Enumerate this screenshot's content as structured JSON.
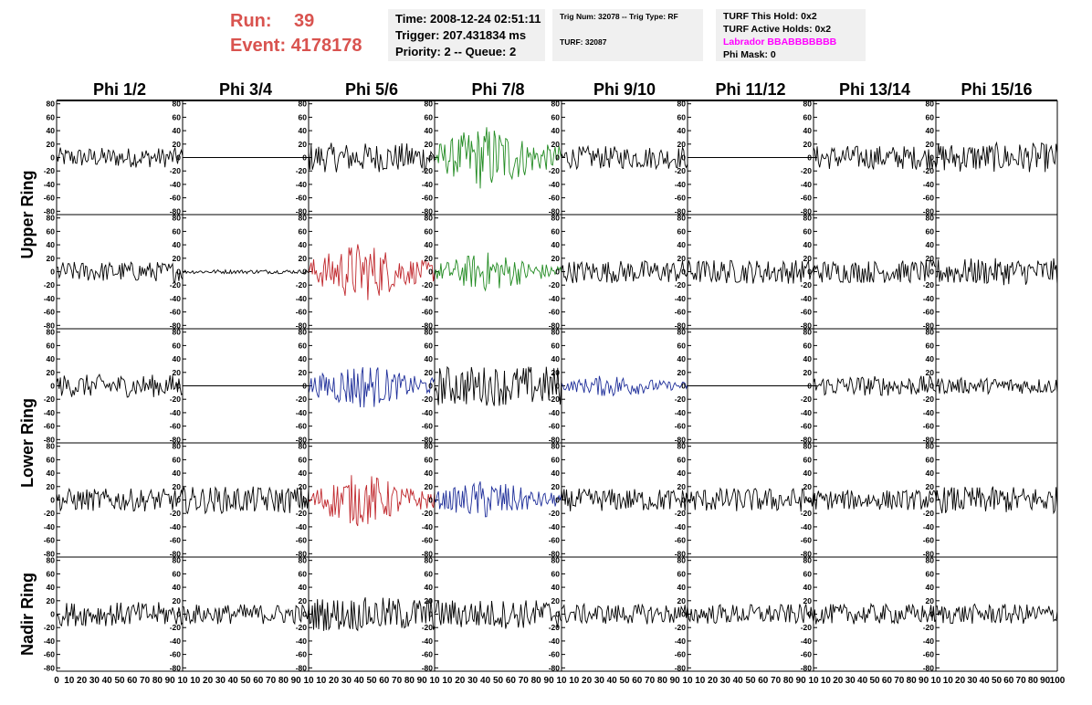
{
  "run_info": {
    "run_label": "Run:",
    "run_value": "39",
    "event_label": "Event:",
    "event_value": "4178178"
  },
  "event_box": {
    "time": "Time: 2008-12-24 02:51:11",
    "trigger": "Trigger: 207.431834 ms",
    "priority": "Priority: 2 -- Queue: 2"
  },
  "trig_box": {
    "trig": "Trig Num: 32078 -- Trig Type: RF",
    "turf": "TURF: 32087"
  },
  "turf_box": {
    "this_hold": "TURF This Hold: 0x2",
    "active_holds": "TURF Active Holds: 0x2",
    "labrador": "Labrador BBABBBBBBB",
    "phi_mask": "Phi Mask: 0"
  },
  "colors": {
    "text_red": "#d9534f",
    "labrador_magenta": "#ff00ff",
    "trace_black": "#000000",
    "trace_green": "#228b22",
    "trace_red": "#c0282d",
    "trace_blue": "#1f2f9a",
    "box_bg": "#f0f0f0"
  },
  "chart_data": {
    "type": "line",
    "phi_headers": [
      "Phi 1/2",
      "Phi 3/4",
      "Phi 5/6",
      "Phi 7/8",
      "Phi 9/10",
      "Phi 11/12",
      "Phi 13/14",
      "Phi 15/16"
    ],
    "ring_labels": [
      {
        "text": "Upper Ring",
        "rows": [
          0,
          1
        ]
      },
      {
        "text": "Lower Ring",
        "rows": [
          2,
          3
        ]
      },
      {
        "text": "Nadir Ring",
        "rows": [
          4
        ]
      }
    ],
    "x_range": [
      0,
      100
    ],
    "y_range": [
      -85,
      85
    ],
    "y_ticks": [
      -80,
      -60,
      -40,
      -20,
      0,
      20,
      40,
      60,
      80
    ],
    "x_ticks": [
      0,
      10,
      20,
      30,
      40,
      50,
      60,
      70,
      80,
      90,
      100
    ],
    "x_tick_labels_per_column": [
      [
        "0",
        "10",
        "20",
        "30",
        "40",
        "50",
        "60",
        "70",
        "80",
        "90",
        "10"
      ],
      [
        "10",
        "20",
        "30",
        "40",
        "50",
        "60",
        "70",
        "80",
        "90",
        "10"
      ],
      [
        "10",
        "20",
        "30",
        "40",
        "50",
        "60",
        "70",
        "80",
        "90",
        "10"
      ],
      [
        "10",
        "20",
        "30",
        "40",
        "50",
        "60",
        "70",
        "80",
        "90",
        "10"
      ],
      [
        "10",
        "20",
        "30",
        "40",
        "50",
        "60",
        "70",
        "80",
        "90",
        "10"
      ],
      [
        "10",
        "20",
        "30",
        "40",
        "50",
        "60",
        "70",
        "80",
        "90",
        "10"
      ],
      [
        "10",
        "20",
        "30",
        "40",
        "50",
        "60",
        "70",
        "80",
        "90",
        "10"
      ],
      [
        "10",
        "20",
        "30",
        "40",
        "50",
        "60",
        "70",
        "80",
        "90",
        "100"
      ]
    ],
    "waveform_samples": 100,
    "panels": [
      [
        {
          "color": "black",
          "amplitude": 15,
          "envelope": "flat"
        },
        {
          "color": "black",
          "amplitude": 0,
          "envelope": "flat"
        },
        {
          "color": "black",
          "amplitude": 22,
          "envelope": "flat"
        },
        {
          "color": "green",
          "amplitude": 50,
          "envelope": "pulse"
        },
        {
          "color": "black",
          "amplitude": 17,
          "envelope": "flat"
        },
        {
          "color": "black",
          "amplitude": 0,
          "envelope": "flat"
        },
        {
          "color": "black",
          "amplitude": 18,
          "envelope": "flat"
        },
        {
          "color": "black",
          "amplitude": 22,
          "envelope": "flat"
        }
      ],
      [
        {
          "color": "black",
          "amplitude": 15,
          "envelope": "flat"
        },
        {
          "color": "black",
          "amplitude": 3,
          "envelope": "flat"
        },
        {
          "color": "red",
          "amplitude": 45,
          "envelope": "pulse"
        },
        {
          "color": "green",
          "amplitude": 30,
          "envelope": "pulse"
        },
        {
          "color": "black",
          "amplitude": 17,
          "envelope": "flat"
        },
        {
          "color": "black",
          "amplitude": 18,
          "envelope": "flat"
        },
        {
          "color": "black",
          "amplitude": 17,
          "envelope": "flat"
        },
        {
          "color": "black",
          "amplitude": 20,
          "envelope": "flat"
        }
      ],
      [
        {
          "color": "black",
          "amplitude": 17,
          "envelope": "flat"
        },
        {
          "color": "black",
          "amplitude": 0,
          "envelope": "flat"
        },
        {
          "color": "blue",
          "amplitude": 35,
          "envelope": "pulse"
        },
        {
          "color": "black",
          "amplitude": 30,
          "envelope": "flat"
        },
        {
          "color": "blue",
          "amplitude": 17,
          "envelope": "pulse"
        },
        {
          "color": "black",
          "amplitude": 0,
          "envelope": "flat"
        },
        {
          "color": "black",
          "amplitude": 15,
          "envelope": "flat"
        },
        {
          "color": "black",
          "amplitude": 12,
          "envelope": "flat"
        }
      ],
      [
        {
          "color": "black",
          "amplitude": 17,
          "envelope": "flat"
        },
        {
          "color": "black",
          "amplitude": 20,
          "envelope": "flat"
        },
        {
          "color": "red",
          "amplitude": 40,
          "envelope": "pulse"
        },
        {
          "color": "blue",
          "amplitude": 30,
          "envelope": "pulse"
        },
        {
          "color": "black",
          "amplitude": 17,
          "envelope": "flat"
        },
        {
          "color": "black",
          "amplitude": 18,
          "envelope": "flat"
        },
        {
          "color": "black",
          "amplitude": 15,
          "envelope": "flat"
        },
        {
          "color": "black",
          "amplitude": 20,
          "envelope": "flat"
        }
      ],
      [
        {
          "color": "black",
          "amplitude": 18,
          "envelope": "flat"
        },
        {
          "color": "black",
          "amplitude": 15,
          "envelope": "flat"
        },
        {
          "color": "black",
          "amplitude": 25,
          "envelope": "flat"
        },
        {
          "color": "black",
          "amplitude": 22,
          "envelope": "flat"
        },
        {
          "color": "black",
          "amplitude": 15,
          "envelope": "flat"
        },
        {
          "color": "black",
          "amplitude": 15,
          "envelope": "flat"
        },
        {
          "color": "black",
          "amplitude": 15,
          "envelope": "flat"
        },
        {
          "color": "black",
          "amplitude": 15,
          "envelope": "flat"
        }
      ]
    ]
  }
}
